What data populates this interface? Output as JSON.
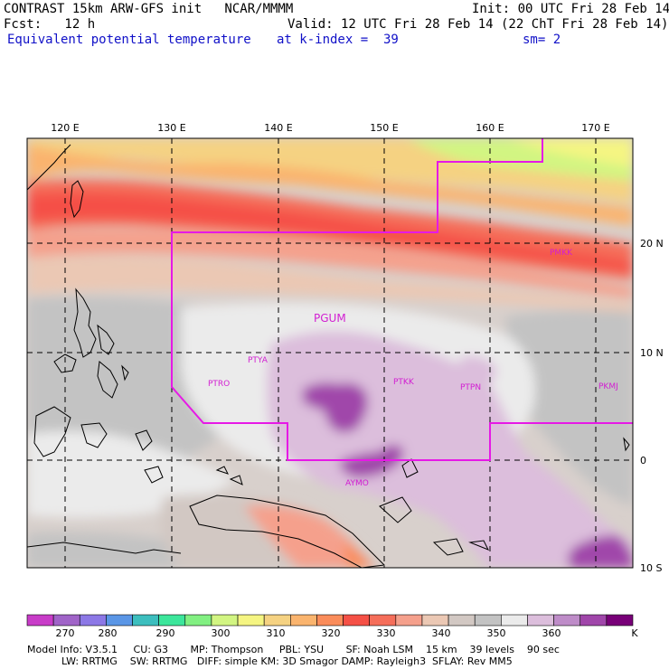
{
  "header": {
    "line1_left": "CONTRAST 15km ARW-GFS init   NCAR/MMMM",
    "line1_right": "Init: 00 UTC Fri 28 Feb 14",
    "line2_left": "Fcst:   12 h",
    "line2_right": "Valid: 12 UTC Fri 28 Feb 14 (22 ChT Fri 28 Feb 14)",
    "field": "Equivalent potential temperature",
    "level": "at k-index =  39",
    "smooth": "sm= 2"
  },
  "map": {
    "lon_labels": [
      "120 E",
      "130 E",
      "140 E",
      "150 E",
      "160 E",
      "170 E"
    ],
    "lat_labels": [
      "20 N",
      "10 N",
      "0",
      "10 S"
    ],
    "stations": [
      {
        "id": "PGUM",
        "large": true
      },
      {
        "id": "PTYA"
      },
      {
        "id": "PTRO"
      },
      {
        "id": "PTKK"
      },
      {
        "id": "PTPN"
      },
      {
        "id": "PKMJ"
      },
      {
        "id": "PMKK"
      },
      {
        "id": "AYMO"
      }
    ],
    "domain_line_color": "#e619e6"
  },
  "colorbar": {
    "labels": [
      "270",
      "280",
      "290",
      "300",
      "310",
      "320",
      "330",
      "340",
      "350",
      "360"
    ],
    "unit": "K",
    "colors": [
      "#c83cc8",
      "#a064c8",
      "#8c78e6",
      "#5a96e6",
      "#3cbebe",
      "#3ce69b",
      "#82f082",
      "#d2f582",
      "#f5f582",
      "#f5d282",
      "#fab46e",
      "#fa8c5a",
      "#f55046",
      "#f56e5a",
      "#f5a08c",
      "#ebc8b4",
      "#d2c8c3",
      "#c3c3c3",
      "#ebebeb",
      "#dcbedc",
      "#be8cc8",
      "#a046aa",
      "#780078"
    ]
  },
  "model_info": {
    "line1": "Model Info: V3.5.1     CU: G3       MP: Thompson     PBL: YSU       SF: Noah LSM    15 km    39 levels    90 sec",
    "line2": "LW: RRTMG    SW: RRTMG   DIFF: simple KM: 3D Smagor DAMP: Rayleigh3  SFLAY: Rev MM5"
  }
}
